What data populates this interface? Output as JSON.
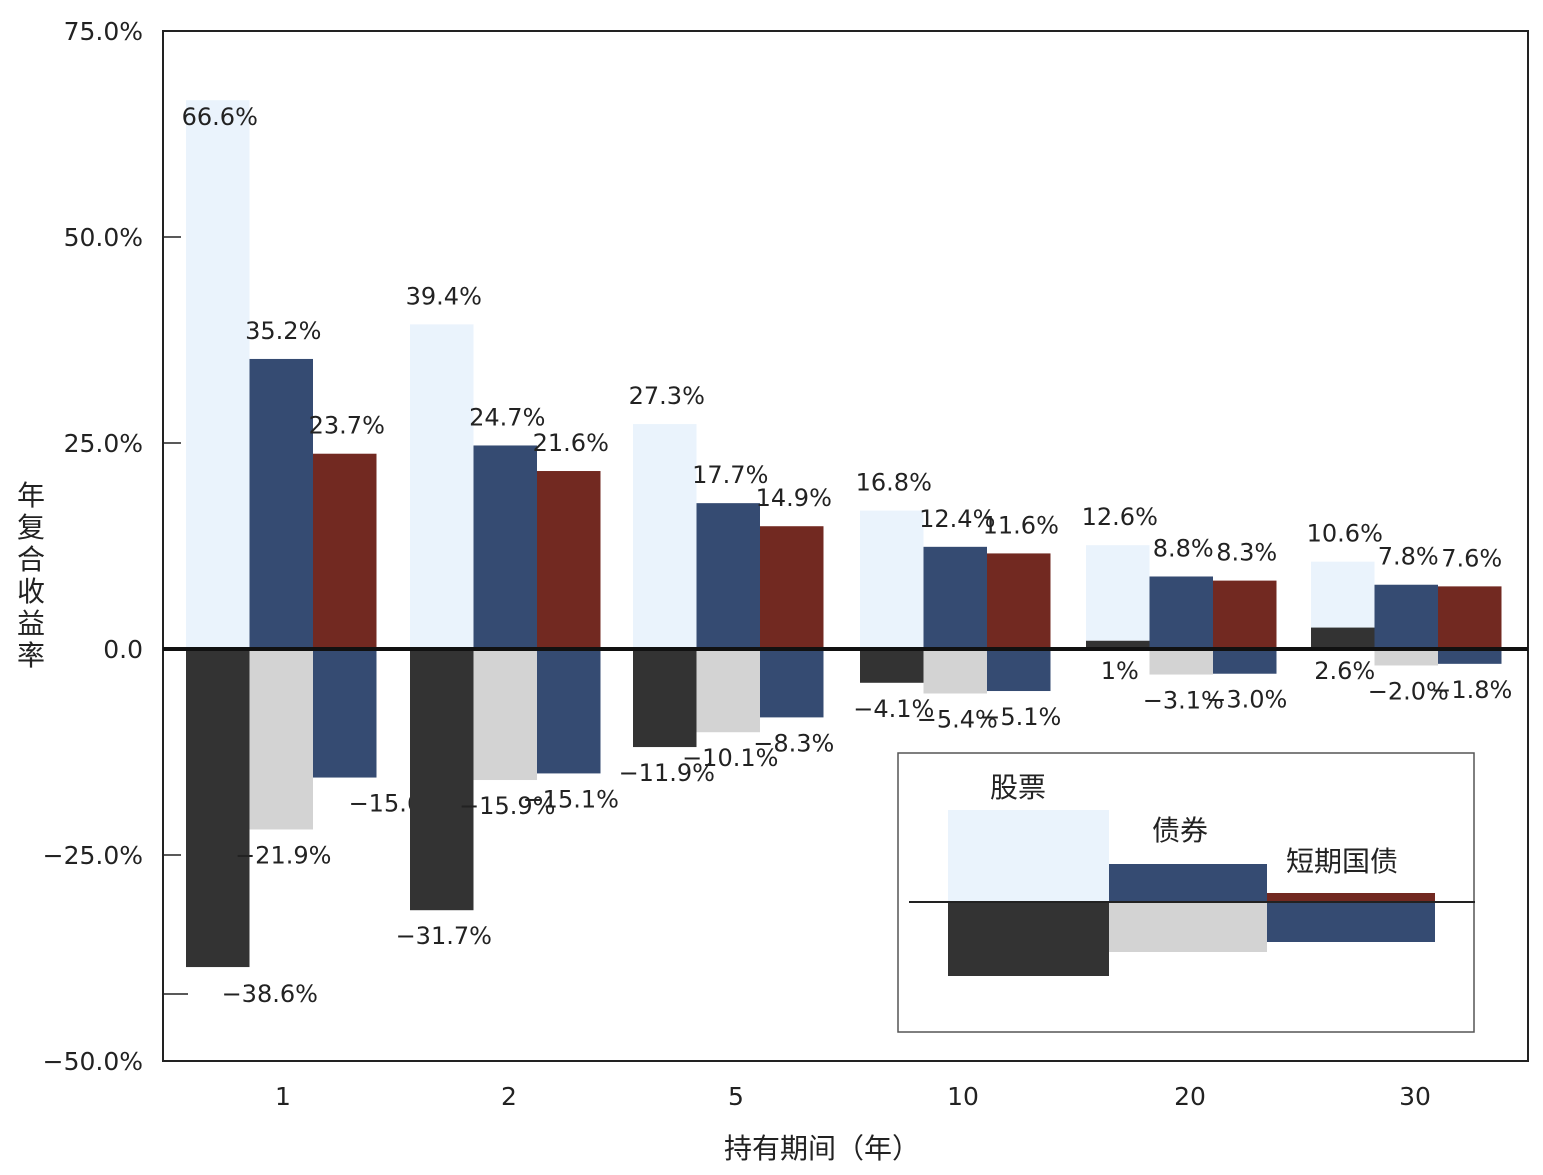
{
  "chart_data": {
    "type": "bar",
    "xlabel": "持有期间（年）",
    "ylabel": "年复合收益率",
    "ylim": [
      -50,
      75
    ],
    "y_ticks": [
      "75.0%",
      "50.0%",
      "25.0%",
      "0.0",
      "−25.0%",
      "−50.0%"
    ],
    "y_tick_values": [
      75,
      50,
      25,
      0,
      -25,
      -50
    ],
    "categories": [
      "1",
      "2",
      "5",
      "10",
      "20",
      "30"
    ],
    "series": [
      {
        "name": "股票",
        "max": [
          66.6,
          39.4,
          27.3,
          16.8,
          12.6,
          10.6
        ],
        "min": [
          -38.6,
          -31.7,
          -11.9,
          -4.1,
          1,
          2.6
        ],
        "max_labels": [
          "66.6%",
          "39.4%",
          "27.3%",
          "16.8%",
          "12.6%",
          "10.6%"
        ],
        "min_labels": [
          "−38.6%",
          "−31.7%",
          "−11.9%",
          "−4.1%",
          "1%",
          "2.6%"
        ],
        "max_color": "#EAF3FC",
        "min_color": "#333333"
      },
      {
        "name": "债券",
        "max": [
          35.2,
          24.7,
          17.7,
          12.4,
          8.8,
          7.8
        ],
        "min": [
          -21.9,
          -15.9,
          -10.1,
          -5.4,
          -3.1,
          -2.0
        ],
        "max_labels": [
          "35.2%",
          "24.7%",
          "17.7%",
          "12.4%",
          "8.8%",
          "7.8%"
        ],
        "min_labels": [
          "−21.9%",
          "−15.9%",
          "−10.1%",
          "−5.4%",
          "−3.1%",
          "−2.0%"
        ],
        "max_color": "#354B72",
        "min_color": "#D3D3D3"
      },
      {
        "name": "短期国债",
        "max": [
          23.7,
          21.6,
          14.9,
          11.6,
          8.3,
          7.6
        ],
        "min": [
          -15.6,
          -15.1,
          -8.3,
          -5.1,
          -3.0,
          -1.8
        ],
        "max_labels": [
          "23.7%",
          "21.6%",
          "14.9%",
          "11.6%",
          "8.3%",
          "7.6%"
        ],
        "min_labels": [
          "−15.6%",
          "−15.1%",
          "−8.3%",
          "−5.1%",
          "−3.0%",
          "−1.8%"
        ],
        "max_color": "#722921",
        "min_color": "#354B72"
      }
    ],
    "legend": {
      "position": "lower-right",
      "items": [
        "股票",
        "债券",
        "短期国债"
      ]
    },
    "grid": false
  }
}
